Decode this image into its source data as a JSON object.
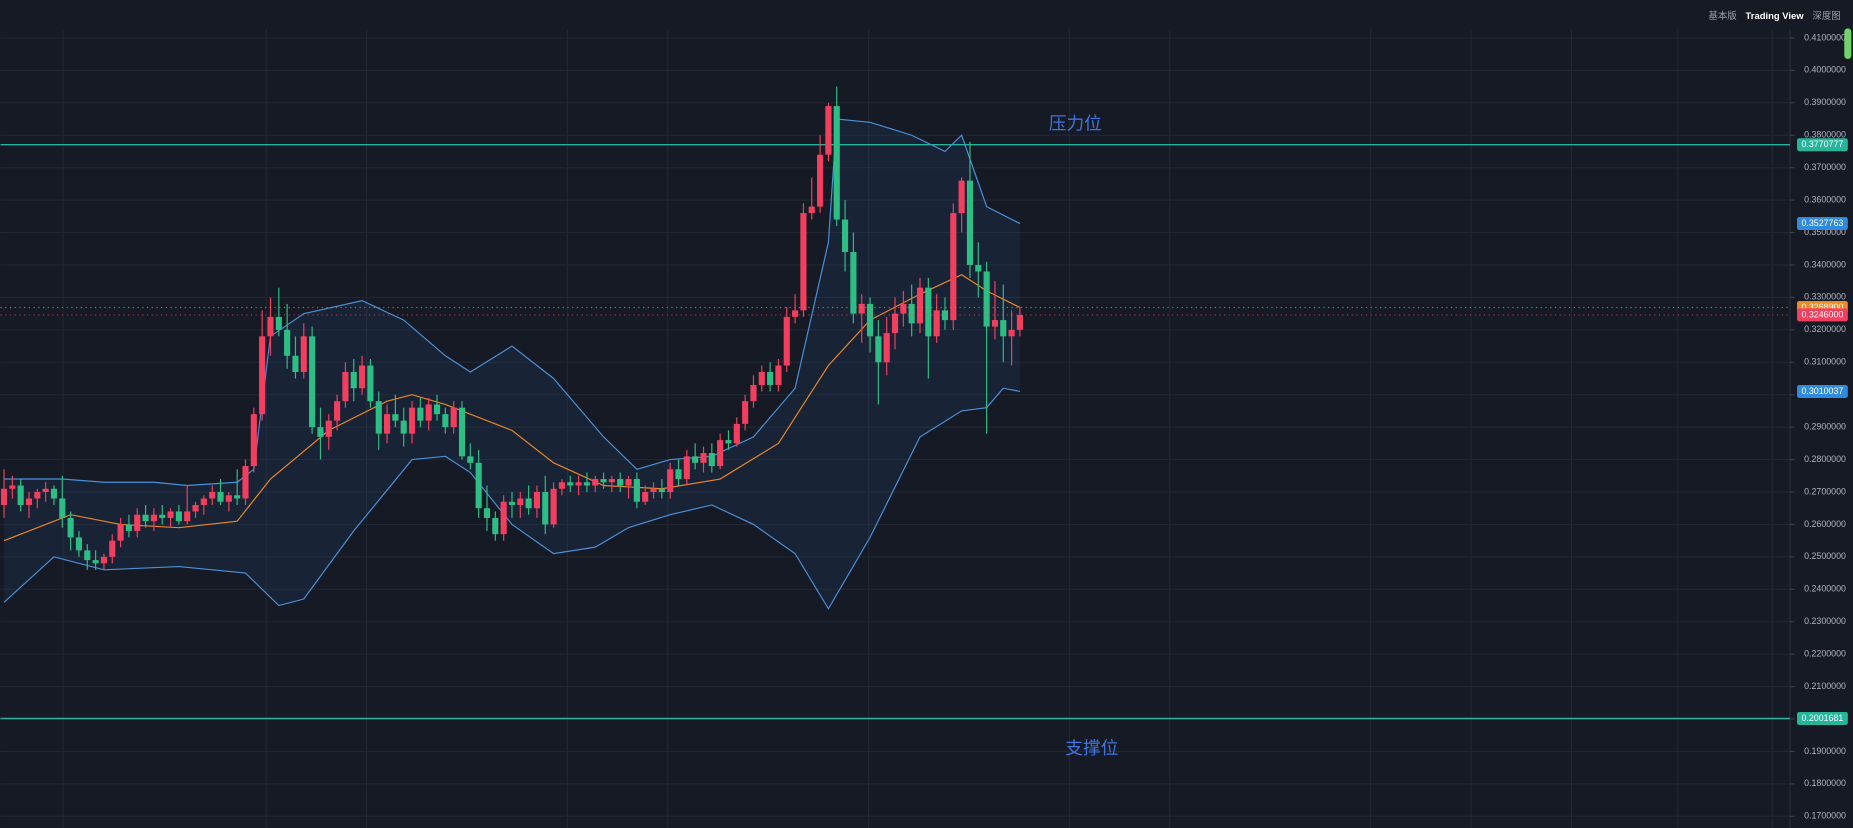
{
  "header": {
    "tabs": [
      "基本版",
      "Trading View",
      "深度图"
    ]
  },
  "chart_data": {
    "type": "candlestick",
    "ylim": [
      0.1664,
      0.4217
    ],
    "yticks": [
      {
        "value": 0.17,
        "label": "0.1700000"
      },
      {
        "value": 0.18,
        "label": "0.1800000"
      },
      {
        "value": 0.19,
        "label": "0.1900000"
      },
      {
        "value": 0.2,
        "label": "0.2000000"
      },
      {
        "value": 0.21,
        "label": "0.2100000"
      },
      {
        "value": 0.22,
        "label": "0.2200000"
      },
      {
        "value": 0.23,
        "label": "0.2300000"
      },
      {
        "value": 0.24,
        "label": "0.2400000"
      },
      {
        "value": 0.25,
        "label": "0.2500000"
      },
      {
        "value": 0.26,
        "label": "0.2600000"
      },
      {
        "value": 0.27,
        "label": "0.2700000"
      },
      {
        "value": 0.28,
        "label": "0.2800000"
      },
      {
        "value": 0.29,
        "label": "0.2900000"
      },
      {
        "value": 0.3,
        "label": "0.3000000"
      },
      {
        "value": 0.31,
        "label": "0.3100000"
      },
      {
        "value": 0.32,
        "label": "0.3200000"
      },
      {
        "value": 0.33,
        "label": "0.3300000"
      },
      {
        "value": 0.34,
        "label": "0.3400000"
      },
      {
        "value": 0.35,
        "label": "0.3500000"
      },
      {
        "value": 0.36,
        "label": "0.3600000"
      },
      {
        "value": 0.37,
        "label": "0.3700000"
      },
      {
        "value": 0.38,
        "label": "0.3800000"
      },
      {
        "value": 0.39,
        "label": "0.3900000"
      },
      {
        "value": 0.4,
        "label": "0.4000000"
      },
      {
        "value": 0.41,
        "label": "0.4100000"
      }
    ],
    "grid": true,
    "up_color": "#f23f5f",
    "down_color": "#2ebd85",
    "candles": [
      [
        0.266,
        0.277,
        0.262,
        0.271
      ],
      [
        0.271,
        0.275,
        0.268,
        0.272
      ],
      [
        0.272,
        0.274,
        0.264,
        0.266
      ],
      [
        0.266,
        0.27,
        0.262,
        0.268
      ],
      [
        0.268,
        0.271,
        0.265,
        0.27
      ],
      [
        0.27,
        0.273,
        0.267,
        0.271
      ],
      [
        0.271,
        0.272,
        0.266,
        0.268
      ],
      [
        0.268,
        0.275,
        0.259,
        0.262
      ],
      [
        0.262,
        0.264,
        0.252,
        0.256
      ],
      [
        0.256,
        0.258,
        0.25,
        0.252
      ],
      [
        0.252,
        0.254,
        0.246,
        0.249
      ],
      [
        0.249,
        0.252,
        0.246,
        0.248
      ],
      [
        0.248,
        0.251,
        0.246,
        0.25
      ],
      [
        0.25,
        0.257,
        0.248,
        0.255
      ],
      [
        0.255,
        0.262,
        0.253,
        0.26
      ],
      [
        0.26,
        0.263,
        0.256,
        0.258
      ],
      [
        0.258,
        0.265,
        0.256,
        0.263
      ],
      [
        0.263,
        0.266,
        0.259,
        0.261
      ],
      [
        0.261,
        0.265,
        0.258,
        0.263
      ],
      [
        0.263,
        0.266,
        0.26,
        0.262
      ],
      [
        0.262,
        0.265,
        0.259,
        0.264
      ],
      [
        0.264,
        0.266,
        0.26,
        0.261
      ],
      [
        0.261,
        0.272,
        0.26,
        0.264
      ],
      [
        0.264,
        0.267,
        0.262,
        0.266
      ],
      [
        0.266,
        0.269,
        0.263,
        0.268
      ],
      [
        0.268,
        0.272,
        0.266,
        0.27
      ],
      [
        0.27,
        0.274,
        0.266,
        0.267
      ],
      [
        0.267,
        0.27,
        0.264,
        0.269
      ],
      [
        0.269,
        0.277,
        0.266,
        0.268
      ],
      [
        0.268,
        0.28,
        0.266,
        0.278
      ],
      [
        0.278,
        0.296,
        0.276,
        0.294
      ],
      [
        0.294,
        0.326,
        0.292,
        0.318
      ],
      [
        0.318,
        0.33,
        0.312,
        0.324
      ],
      [
        0.324,
        0.333,
        0.318,
        0.32
      ],
      [
        0.32,
        0.328,
        0.308,
        0.312
      ],
      [
        0.312,
        0.318,
        0.305,
        0.307
      ],
      [
        0.307,
        0.322,
        0.305,
        0.318
      ],
      [
        0.318,
        0.321,
        0.288,
        0.29
      ],
      [
        0.29,
        0.296,
        0.28,
        0.287
      ],
      [
        0.287,
        0.294,
        0.283,
        0.292
      ],
      [
        0.292,
        0.3,
        0.289,
        0.298
      ],
      [
        0.298,
        0.31,
        0.296,
        0.307
      ],
      [
        0.307,
        0.311,
        0.298,
        0.302
      ],
      [
        0.302,
        0.312,
        0.3,
        0.309
      ],
      [
        0.309,
        0.311,
        0.296,
        0.298
      ],
      [
        0.298,
        0.301,
        0.283,
        0.288
      ],
      [
        0.288,
        0.297,
        0.285,
        0.294
      ],
      [
        0.294,
        0.3,
        0.29,
        0.292
      ],
      [
        0.292,
        0.296,
        0.284,
        0.288
      ],
      [
        0.288,
        0.298,
        0.285,
        0.296
      ],
      [
        0.296,
        0.299,
        0.29,
        0.292
      ],
      [
        0.292,
        0.299,
        0.289,
        0.297
      ],
      [
        0.297,
        0.3,
        0.292,
        0.294
      ],
      [
        0.294,
        0.296,
        0.288,
        0.29
      ],
      [
        0.29,
        0.298,
        0.288,
        0.296
      ],
      [
        0.296,
        0.298,
        0.28,
        0.281
      ],
      [
        0.281,
        0.285,
        0.277,
        0.279
      ],
      [
        0.279,
        0.283,
        0.262,
        0.265
      ],
      [
        0.265,
        0.272,
        0.258,
        0.262
      ],
      [
        0.262,
        0.264,
        0.255,
        0.257
      ],
      [
        0.257,
        0.269,
        0.255,
        0.267
      ],
      [
        0.267,
        0.27,
        0.262,
        0.266
      ],
      [
        0.266,
        0.27,
        0.262,
        0.268
      ],
      [
        0.268,
        0.272,
        0.263,
        0.265
      ],
      [
        0.265,
        0.272,
        0.262,
        0.27
      ],
      [
        0.27,
        0.275,
        0.257,
        0.26
      ],
      [
        0.26,
        0.273,
        0.259,
        0.271
      ],
      [
        0.271,
        0.274,
        0.269,
        0.273
      ],
      [
        0.273,
        0.275,
        0.27,
        0.272
      ],
      [
        0.272,
        0.275,
        0.269,
        0.273
      ],
      [
        0.273,
        0.276,
        0.27,
        0.272
      ],
      [
        0.272,
        0.275,
        0.27,
        0.274
      ],
      [
        0.274,
        0.276,
        0.271,
        0.273
      ],
      [
        0.273,
        0.275,
        0.27,
        0.274
      ],
      [
        0.274,
        0.276,
        0.27,
        0.272
      ],
      [
        0.272,
        0.275,
        0.268,
        0.274
      ],
      [
        0.274,
        0.276,
        0.265,
        0.267
      ],
      [
        0.267,
        0.272,
        0.266,
        0.27
      ],
      [
        0.27,
        0.273,
        0.268,
        0.271
      ],
      [
        0.271,
        0.274,
        0.268,
        0.27
      ],
      [
        0.27,
        0.279,
        0.268,
        0.277
      ],
      [
        0.277,
        0.28,
        0.272,
        0.274
      ],
      [
        0.274,
        0.283,
        0.272,
        0.281
      ],
      [
        0.281,
        0.285,
        0.277,
        0.279
      ],
      [
        0.279,
        0.284,
        0.276,
        0.282
      ],
      [
        0.282,
        0.285,
        0.276,
        0.278
      ],
      [
        0.278,
        0.288,
        0.277,
        0.286
      ],
      [
        0.286,
        0.289,
        0.283,
        0.285
      ],
      [
        0.285,
        0.293,
        0.284,
        0.291
      ],
      [
        0.291,
        0.3,
        0.289,
        0.298
      ],
      [
        0.298,
        0.306,
        0.296,
        0.303
      ],
      [
        0.303,
        0.309,
        0.301,
        0.307
      ],
      [
        0.307,
        0.31,
        0.301,
        0.303
      ],
      [
        0.303,
        0.311,
        0.301,
        0.309
      ],
      [
        0.309,
        0.327,
        0.307,
        0.324
      ],
      [
        0.324,
        0.331,
        0.322,
        0.326
      ],
      [
        0.326,
        0.359,
        0.324,
        0.356
      ],
      [
        0.356,
        0.367,
        0.354,
        0.358
      ],
      [
        0.358,
        0.38,
        0.356,
        0.374
      ],
      [
        0.374,
        0.39,
        0.372,
        0.389
      ],
      [
        0.389,
        0.395,
        0.352,
        0.354
      ],
      [
        0.354,
        0.36,
        0.338,
        0.344
      ],
      [
        0.344,
        0.35,
        0.322,
        0.325
      ],
      [
        0.325,
        0.331,
        0.316,
        0.328
      ],
      [
        0.328,
        0.33,
        0.313,
        0.318
      ],
      [
        0.318,
        0.323,
        0.297,
        0.31
      ],
      [
        0.31,
        0.324,
        0.306,
        0.319
      ],
      [
        0.319,
        0.33,
        0.314,
        0.325
      ],
      [
        0.325,
        0.332,
        0.321,
        0.328
      ],
      [
        0.328,
        0.334,
        0.318,
        0.322
      ],
      [
        0.322,
        0.336,
        0.319,
        0.333
      ],
      [
        0.333,
        0.336,
        0.305,
        0.318
      ],
      [
        0.318,
        0.331,
        0.316,
        0.326
      ],
      [
        0.326,
        0.33,
        0.32,
        0.323
      ],
      [
        0.323,
        0.359,
        0.32,
        0.356
      ],
      [
        0.356,
        0.367,
        0.35,
        0.366
      ],
      [
        0.366,
        0.378,
        0.336,
        0.34
      ],
      [
        0.34,
        0.347,
        0.33,
        0.338
      ],
      [
        0.338,
        0.341,
        0.288,
        0.321
      ],
      [
        0.321,
        0.335,
        0.317,
        0.323
      ],
      [
        0.323,
        0.334,
        0.31,
        0.318
      ],
      [
        0.318,
        0.326,
        0.309,
        0.32
      ],
      [
        0.32,
        0.327,
        0.318,
        0.3246
      ]
    ],
    "series": [
      {
        "color": "#4a90d9",
        "x": [
          0,
          7,
          12,
          18,
          22,
          28,
          30,
          32,
          36,
          43,
          48,
          53,
          56,
          61,
          66,
          72,
          76,
          80,
          85,
          90,
          95,
          99,
          100,
          104,
          109,
          113,
          115,
          118,
          122
        ],
        "values": [
          0.274,
          0.274,
          0.273,
          0.273,
          0.272,
          0.273,
          0.277,
          0.318,
          0.325,
          0.329,
          0.323,
          0.312,
          0.307,
          0.315,
          0.305,
          0.287,
          0.277,
          0.28,
          0.281,
          0.287,
          0.302,
          0.347,
          0.385,
          0.384,
          0.38,
          0.375,
          0.38,
          0.358,
          0.3527763
        ]
      },
      {
        "color": "#e8862a",
        "x": [
          0,
          8,
          14,
          21,
          28,
          32,
          39,
          46,
          49,
          53,
          61,
          66,
          72,
          79,
          86,
          93,
          99,
          104,
          110,
          115,
          118,
          122
        ],
        "values": [
          0.255,
          0.263,
          0.26,
          0.259,
          0.261,
          0.274,
          0.289,
          0.298,
          0.3,
          0.297,
          0.289,
          0.279,
          0.272,
          0.271,
          0.274,
          0.285,
          0.309,
          0.323,
          0.331,
          0.337,
          0.332,
          0.32689
        ]
      },
      {
        "color": "#4a90d9",
        "x": [
          0,
          6,
          12,
          21,
          29,
          33,
          36,
          42,
          49,
          53,
          56,
          61,
          66,
          71,
          75,
          80,
          85,
          90,
          95,
          99,
          104,
          110,
          115,
          118,
          120,
          122
        ],
        "values": [
          0.236,
          0.25,
          0.246,
          0.247,
          0.245,
          0.235,
          0.237,
          0.258,
          0.28,
          0.281,
          0.276,
          0.26,
          0.251,
          0.253,
          0.259,
          0.263,
          0.266,
          0.26,
          0.251,
          0.234,
          0.256,
          0.287,
          0.295,
          0.296,
          0.302,
          0.3010037
        ]
      }
    ],
    "levels": [
      {
        "value": 0.3770777,
        "annotation": "压力位"
      },
      {
        "value": 0.2001681,
        "annotation": "支撑位"
      }
    ],
    "level_color": "#26b59a",
    "price_tags": [
      {
        "value": 0.3527763,
        "color": "#2f8ae0"
      },
      {
        "value": 0.32689,
        "label": "0.3268900",
        "color": "#f08a24"
      },
      {
        "value": 0.3246,
        "label": "0.3246000",
        "color": "#f23f5f"
      },
      {
        "value": 0.3010037,
        "color": "#2f8ae0"
      }
    ]
  }
}
